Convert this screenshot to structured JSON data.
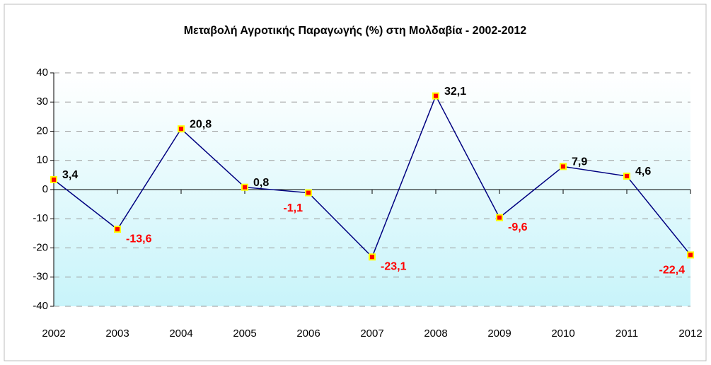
{
  "chart_data": {
    "type": "line",
    "title": "Μεταβολή Αγροτικής Παραγωγής (%) στη Μολδαβία - 2002-2012",
    "categories": [
      "2002",
      "2003",
      "2004",
      "2005",
      "2006",
      "2007",
      "2008",
      "2009",
      "2010",
      "2011",
      "2012"
    ],
    "series": [
      {
        "name": "Μεταβολή",
        "color": "#000080",
        "values": [
          3.4,
          -13.6,
          20.8,
          0.8,
          -1.1,
          -23.1,
          32.1,
          -9.6,
          7.9,
          4.6,
          -22.4
        ],
        "value_labels": [
          "3,4",
          "-13,6",
          "20,8",
          "0,8",
          "-1,1",
          "-23,1",
          "32,1",
          "-9,6",
          "7,9",
          "4,6",
          "-22,4"
        ]
      }
    ],
    "marker_color": "#ff0000",
    "marker_edge_color": "#ffff00",
    "positive_label_color": "#000000",
    "negative_label_color": "#ff0000",
    "ylim": [
      -40,
      40
    ],
    "yticks": [
      -40,
      -30,
      -20,
      -10,
      0,
      10,
      20,
      30,
      40
    ],
    "grid": true
  }
}
